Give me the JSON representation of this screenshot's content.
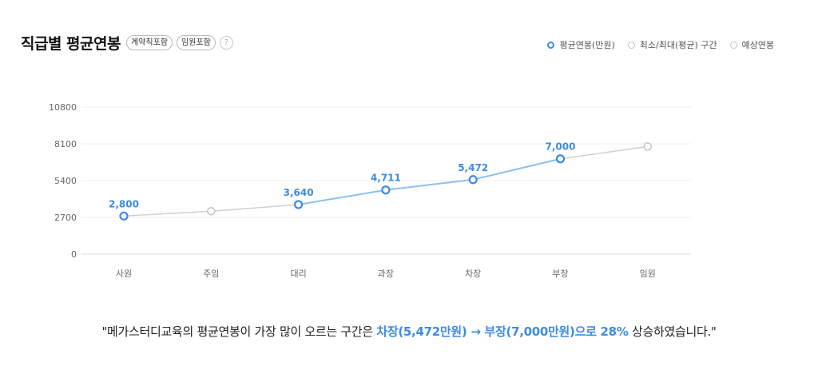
{
  "header": {
    "title": "직급별 평균연봉",
    "badges": [
      "계약직포함",
      "임원포함"
    ],
    "help": "?"
  },
  "legend": [
    {
      "label": "평균연봉(만원)",
      "color": "#3d8be5",
      "icon": "circle-outline-icon"
    },
    {
      "label": "최소/최대(평균) 구간",
      "color": "#c4c4c4",
      "icon": "circle-outline-icon"
    },
    {
      "label": "예상연봉",
      "color": "#c4c4c4",
      "icon": "circle-outline-icon"
    }
  ],
  "chart_data": {
    "type": "line",
    "categories": [
      "사원",
      "주임",
      "대리",
      "과장",
      "차장",
      "부장",
      "임원"
    ],
    "series": [
      {
        "name": "평균연봉(만원)",
        "values": [
          2800,
          null,
          3640,
          4711,
          5472,
          7000,
          null
        ],
        "labels": [
          "2,800",
          "",
          "3,640",
          "4,711",
          "5,472",
          "7,000",
          ""
        ],
        "color": "#3d8be5"
      },
      {
        "name": "예상연봉",
        "values": [
          null,
          3150,
          null,
          null,
          null,
          null,
          7900
        ],
        "color": "#c4c4c4"
      }
    ],
    "yticks": [
      0,
      2700,
      5400,
      8100,
      10800
    ],
    "ytick_labels": [
      "0",
      "2700",
      "5400",
      "8100",
      "10800"
    ],
    "ylim": [
      0,
      10800
    ],
    "grid": true
  },
  "summary": {
    "prefix": "\"메가스터디교육의 평균연봉이 가장 많이 오르는 구간은 ",
    "highlight": "차장(5,472만원) → 부장(7,000만원)으로 28%",
    "suffix": " 상승하였습니다.\""
  }
}
